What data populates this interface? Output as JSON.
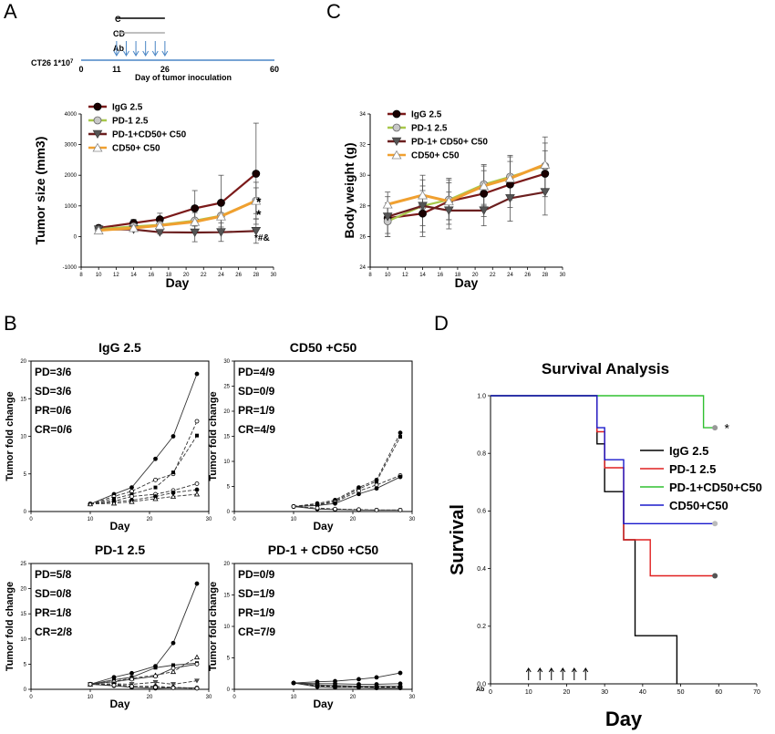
{
  "panels": {
    "a": "A",
    "b": "B",
    "c": "C",
    "d": "D"
  },
  "schedule": {
    "rows": [
      "C",
      "CD",
      "Ab"
    ],
    "line_label": "CT26 1*10",
    "line_label_sup": "7",
    "ticks": [
      "0",
      "11",
      "26",
      "60"
    ],
    "xlabel": "Day of tumor inoculation",
    "c_bar": [
      11,
      26
    ],
    "cd_bar": [
      11,
      26
    ],
    "ab_days": [
      11,
      14,
      17,
      20,
      23,
      26
    ]
  },
  "markers": {
    "a_stars": [
      "*",
      "*",
      "*#&"
    ],
    "d_star": "*",
    "d_ab_label": "Ab"
  },
  "chart_data": [
    {
      "id": "tumor_size",
      "type": "line",
      "xlabel": "Day",
      "ylabel": "Tumor size (mm3)",
      "xlim": [
        8,
        30
      ],
      "ylim": [
        -1000,
        4000
      ],
      "xticks": [
        8,
        10,
        12,
        14,
        16,
        18,
        20,
        22,
        24,
        26,
        28,
        30
      ],
      "yticks": [
        -1000,
        0,
        1000,
        2000,
        3000,
        4000
      ],
      "x": [
        10,
        14,
        17,
        21,
        24,
        28
      ],
      "legend_position": "top-left",
      "series": [
        {
          "name": "IgG 2.5",
          "color": "#7b1a1a",
          "marker": "circle-filled",
          "values": [
            280,
            440,
            560,
            920,
            1100,
            2050
          ],
          "err": [
            60,
            120,
            200,
            580,
            900,
            1650
          ]
        },
        {
          "name": "PD-1 2.5",
          "color": "#a8c84a",
          "marker": "circle-gray",
          "values": [
            240,
            330,
            380,
            520,
            680,
            1170
          ],
          "err": [
            50,
            90,
            160,
            350,
            450,
            600
          ]
        },
        {
          "name": "PD-1+CD50+ C50",
          "color": "#6b1f1f",
          "marker": "triangle-down",
          "values": [
            230,
            230,
            140,
            130,
            140,
            180
          ],
          "err": [
            40,
            60,
            60,
            300,
            300,
            400
          ]
        },
        {
          "name": "CD50+ C50",
          "color": "#f0a030",
          "marker": "triangle-up-open",
          "values": [
            200,
            280,
            360,
            480,
            660,
            1170
          ],
          "err": [
            50,
            80,
            150,
            300,
            350,
            420
          ]
        }
      ]
    },
    {
      "id": "body_weight",
      "type": "line",
      "xlabel": "Day",
      "ylabel": "Body weight (g)",
      "xlim": [
        8,
        30
      ],
      "ylim": [
        24,
        34
      ],
      "xticks": [
        8,
        10,
        12,
        14,
        16,
        18,
        20,
        22,
        24,
        26,
        28,
        30
      ],
      "yticks": [
        24,
        26,
        28,
        30,
        32,
        34
      ],
      "x": [
        10,
        14,
        17,
        21,
        24,
        28
      ],
      "legend_position": "top-left",
      "series": [
        {
          "name": "IgG 2.5",
          "color": "#7b1a1a",
          "marker": "circle-filled",
          "values": [
            27.2,
            27.5,
            28.3,
            28.8,
            29.4,
            30.1
          ],
          "err": [
            1.0,
            1.5,
            1.5,
            1.5,
            1.5,
            1.5
          ]
        },
        {
          "name": "PD-1 2.5",
          "color": "#a8c84a",
          "marker": "circle-gray",
          "values": [
            27.0,
            28.0,
            28.4,
            29.4,
            29.9,
            30.6
          ],
          "err": [
            1.0,
            1.3,
            1.3,
            1.3,
            1.4,
            1.5
          ]
        },
        {
          "name": "PD-1+ CD50+ C50",
          "color": "#6b1f1f",
          "marker": "triangle-down",
          "values": [
            27.3,
            28.0,
            27.7,
            27.7,
            28.5,
            28.9
          ],
          "err": [
            1.3,
            1.7,
            1.2,
            1.0,
            1.5,
            1.5
          ]
        },
        {
          "name": "CD50+ C50",
          "color": "#f0a030",
          "marker": "triangle-up-open",
          "values": [
            28.1,
            28.7,
            28.3,
            29.3,
            29.8,
            30.7
          ],
          "err": [
            0.8,
            1.3,
            1.2,
            1.3,
            1.4,
            1.8
          ]
        }
      ]
    },
    {
      "id": "fold_igg",
      "type": "line",
      "title": "IgG 2.5",
      "xlabel": "Day",
      "ylabel": "Tumor fold change",
      "xlim": [
        0,
        30
      ],
      "ylim": [
        0,
        20
      ],
      "xticks": [
        0,
        10,
        20,
        30
      ],
      "yticks": [
        0,
        5,
        10,
        15,
        20
      ],
      "x": [
        10,
        14,
        17,
        21,
        24,
        28
      ],
      "stats": [
        "PD=3/6",
        "SD=3/6",
        "PR=0/6",
        "CR=0/6"
      ],
      "series": [
        {
          "dash": "solid",
          "marker": "filled",
          "values": [
            1,
            2.3,
            3.2,
            7.0,
            10.0,
            18.3
          ]
        },
        {
          "dash": "dashed",
          "marker": "open",
          "values": [
            1,
            2.0,
            2.7,
            4.2,
            5.0,
            12.0
          ]
        },
        {
          "dash": "dashed",
          "marker": "square",
          "values": [
            1,
            1.7,
            2.3,
            3.2,
            5.2,
            10.1
          ]
        },
        {
          "dash": "dashed",
          "marker": "open",
          "values": [
            1,
            1.4,
            2.0,
            2.3,
            2.8,
            3.7
          ]
        },
        {
          "dash": "dashed",
          "marker": "filled",
          "values": [
            1,
            1.3,
            1.5,
            2.0,
            2.5,
            2.9
          ]
        },
        {
          "dash": "dashed",
          "marker": "triangle",
          "values": [
            1,
            1.1,
            1.3,
            1.7,
            2.0,
            2.3
          ]
        }
      ]
    },
    {
      "id": "fold_cd50",
      "type": "line",
      "title": "CD50 +C50",
      "xlabel": "Day",
      "ylabel": "Tumor fold change",
      "xlim": [
        0,
        30
      ],
      "ylim": [
        0,
        30
      ],
      "xticks": [
        0,
        10,
        20,
        30
      ],
      "yticks": [
        0,
        5,
        10,
        15,
        20,
        25,
        30
      ],
      "x": [
        10,
        14,
        17,
        21,
        24,
        28
      ],
      "stats": [
        "PD=4/9",
        "SD=0/9",
        "PR=1/9",
        "CR=4/9"
      ],
      "series": [
        {
          "dash": "dashed",
          "marker": "filled",
          "values": [
            1,
            1.6,
            2.3,
            4.8,
            6.3,
            15.7
          ]
        },
        {
          "dash": "dashed",
          "marker": "square",
          "values": [
            1,
            1.4,
            2.1,
            4.5,
            6.0,
            14.9
          ]
        },
        {
          "dash": "dashed",
          "marker": "open",
          "values": [
            1,
            1.3,
            1.9,
            4.1,
            5.3,
            7.2
          ]
        },
        {
          "dash": "solid",
          "marker": "filled",
          "values": [
            1,
            1.2,
            1.6,
            3.5,
            4.6,
            6.9
          ]
        },
        {
          "dash": "solid",
          "marker": "filled",
          "values": [
            1,
            0.5,
            0.4,
            0.3,
            0.3,
            0.3
          ]
        },
        {
          "dash": "dashed",
          "marker": "open",
          "values": [
            1,
            0.7,
            0.5,
            0.4,
            0.3,
            0.3
          ]
        }
      ]
    },
    {
      "id": "fold_pd1",
      "type": "line",
      "title": "PD-1 2.5",
      "xlabel": "Day",
      "ylabel": "Tumor fold change",
      "xlim": [
        0,
        30
      ],
      "ylim": [
        0,
        25
      ],
      "xticks": [
        0,
        10,
        20,
        30
      ],
      "yticks": [
        0,
        5,
        10,
        15,
        20,
        25
      ],
      "x": [
        10,
        14,
        17,
        21,
        24,
        28
      ],
      "stats": [
        "PD=5/8",
        "SD=0/8",
        "PR=1/8",
        "CR=2/8"
      ],
      "series": [
        {
          "dash": "solid",
          "marker": "filled",
          "values": [
            1,
            2.4,
            3.2,
            4.6,
            9.2,
            21.0
          ]
        },
        {
          "dash": "dashed",
          "marker": "triangle",
          "values": [
            1,
            1.6,
            2.2,
            2.8,
            3.5,
            6.4
          ]
        },
        {
          "dash": "solid",
          "marker": "square",
          "values": [
            1,
            1.9,
            2.4,
            4.3,
            4.8,
            5.2
          ]
        },
        {
          "dash": "solid",
          "marker": "open",
          "values": [
            1,
            1.5,
            2.0,
            2.6,
            4.2,
            5.0
          ]
        },
        {
          "dash": "dashed",
          "marker": "triangle-down",
          "values": [
            1,
            1.1,
            1.0,
            1.4,
            1.0,
            1.7
          ]
        },
        {
          "dash": "solid",
          "marker": "filled",
          "values": [
            1,
            0.7,
            0.4,
            0.2,
            0.3,
            0.3
          ]
        },
        {
          "dash": "dashed",
          "marker": "filled",
          "values": [
            1,
            1.0,
            0.6,
            0.6,
            0.4,
            0.2
          ]
        },
        {
          "dash": "dashed",
          "marker": "open",
          "values": [
            1,
            0.8,
            0.6,
            0.4,
            0.3,
            0.2
          ]
        }
      ]
    },
    {
      "id": "fold_combo",
      "type": "line",
      "title": "PD-1 + CD50 +C50",
      "xlabel": "Day",
      "ylabel": "Tumor fold change",
      "xlim": [
        0,
        30
      ],
      "ylim": [
        0,
        20
      ],
      "xticks": [
        0,
        10,
        20,
        30
      ],
      "yticks": [
        0,
        5,
        10,
        15,
        20
      ],
      "x": [
        10,
        14,
        17,
        21,
        24,
        28
      ],
      "stats": [
        "PD=0/9",
        "SD=1/9",
        "PR=1/9",
        "CR=7/9"
      ],
      "series": [
        {
          "dash": "solid",
          "marker": "filled",
          "values": [
            1,
            1.2,
            1.3,
            1.6,
            1.9,
            2.6
          ]
        },
        {
          "dash": "solid",
          "marker": "filled",
          "values": [
            1,
            0.9,
            0.9,
            0.8,
            0.8,
            0.9
          ]
        },
        {
          "dash": "solid",
          "marker": "open",
          "values": [
            1,
            0.7,
            0.6,
            0.5,
            0.5,
            0.5
          ]
        },
        {
          "dash": "dashed",
          "marker": "open",
          "values": [
            1,
            0.6,
            0.5,
            0.4,
            0.4,
            0.4
          ]
        },
        {
          "dash": "dashed",
          "marker": "filled",
          "values": [
            1,
            0.5,
            0.4,
            0.4,
            0.3,
            0.3
          ]
        },
        {
          "dash": "solid",
          "marker": "filled",
          "values": [
            1,
            0.4,
            0.3,
            0.3,
            0.2,
            0.2
          ]
        }
      ]
    },
    {
      "id": "survival",
      "type": "line",
      "title": "Survival Analysis",
      "xlabel": "Day",
      "ylabel": "Survival",
      "xlim": [
        0,
        70
      ],
      "ylim": [
        0,
        1.0
      ],
      "xticks": [
        0,
        10,
        20,
        30,
        40,
        50,
        60,
        70
      ],
      "yticks": [
        0.0,
        0.2,
        0.4,
        0.6,
        0.8,
        1.0
      ],
      "ab_days": [
        10,
        13,
        16,
        19,
        22,
        25
      ],
      "legend_position": "center-right",
      "series": [
        {
          "name": "IgG 2.5",
          "color": "#000000",
          "steps": [
            [
              0,
              1.0
            ],
            [
              28,
              1.0
            ],
            [
              28,
              0.833
            ],
            [
              30,
              0.833
            ],
            [
              30,
              0.667
            ],
            [
              35,
              0.667
            ],
            [
              35,
              0.5
            ],
            [
              38,
              0.5
            ],
            [
              38,
              0.167
            ],
            [
              49,
              0.167
            ],
            [
              49,
              0.0
            ]
          ]
        },
        {
          "name": "PD-1 2.5",
          "color": "#e02020",
          "steps": [
            [
              0,
              1.0
            ],
            [
              28,
              1.0
            ],
            [
              28,
              0.875
            ],
            [
              30,
              0.875
            ],
            [
              30,
              0.75
            ],
            [
              35,
              0.75
            ],
            [
              35,
              0.5
            ],
            [
              42,
              0.5
            ],
            [
              42,
              0.375
            ],
            [
              59,
              0.375
            ]
          ],
          "end_marker": "#555555"
        },
        {
          "name": "PD-1+CD50+C50",
          "color": "#30c030",
          "steps": [
            [
              0,
              1.0
            ],
            [
              56,
              1.0
            ],
            [
              56,
              0.889
            ],
            [
              59,
              0.889
            ]
          ],
          "end_marker": "#999999"
        },
        {
          "name": "CD50+C50",
          "color": "#1a1acc",
          "steps": [
            [
              0,
              1.0
            ],
            [
              28,
              1.0
            ],
            [
              28,
              0.889
            ],
            [
              30,
              0.889
            ],
            [
              30,
              0.778
            ],
            [
              35,
              0.778
            ],
            [
              35,
              0.556
            ],
            [
              59,
              0.556
            ]
          ],
          "end_marker": "#bbbbbb"
        }
      ]
    }
  ]
}
